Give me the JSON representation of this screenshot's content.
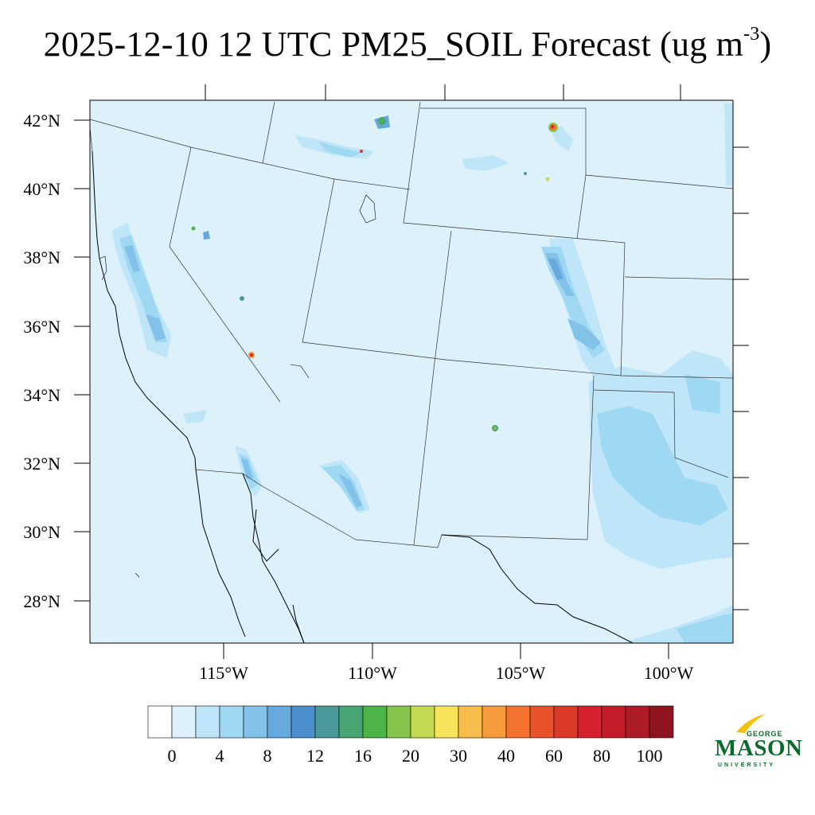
{
  "title": {
    "main": "2025-12-10 12 UTC PM25_SOIL Forecast (ug m",
    "exp": "-3",
    "close": ")"
  },
  "map": {
    "lat_labels": [
      "42°N",
      "40°N",
      "38°N",
      "36°N",
      "34°N",
      "32°N",
      "30°N",
      "28°N"
    ],
    "lon_labels": [
      "115°W",
      "110°W",
      "105°W",
      "100°W"
    ],
    "background_color": "#ddf1fb"
  },
  "colorbar": {
    "colors": [
      "#ffffff",
      "#ddf1fb",
      "#bfe6f8",
      "#9fd8f3",
      "#82c2e8",
      "#65a9dd",
      "#4c8fcd",
      "#4a9a9c",
      "#48a674",
      "#4db447",
      "#86c54b",
      "#c4d952",
      "#f7e45b",
      "#f8bd4a",
      "#f79b3c",
      "#f4722e",
      "#e8522b",
      "#dc3a28",
      "#d52130",
      "#c31d2a",
      "#ad1b26",
      "#8e1520"
    ],
    "tick_labels": [
      "0",
      "4",
      "8",
      "12",
      "16",
      "20",
      "30",
      "40",
      "60",
      "80",
      "100"
    ]
  },
  "logo": {
    "top": "GEORGE",
    "main": "MASON",
    "bottom": "UNIVERSITY",
    "color": "#0a6b2c",
    "accent": "#f2c10f"
  }
}
